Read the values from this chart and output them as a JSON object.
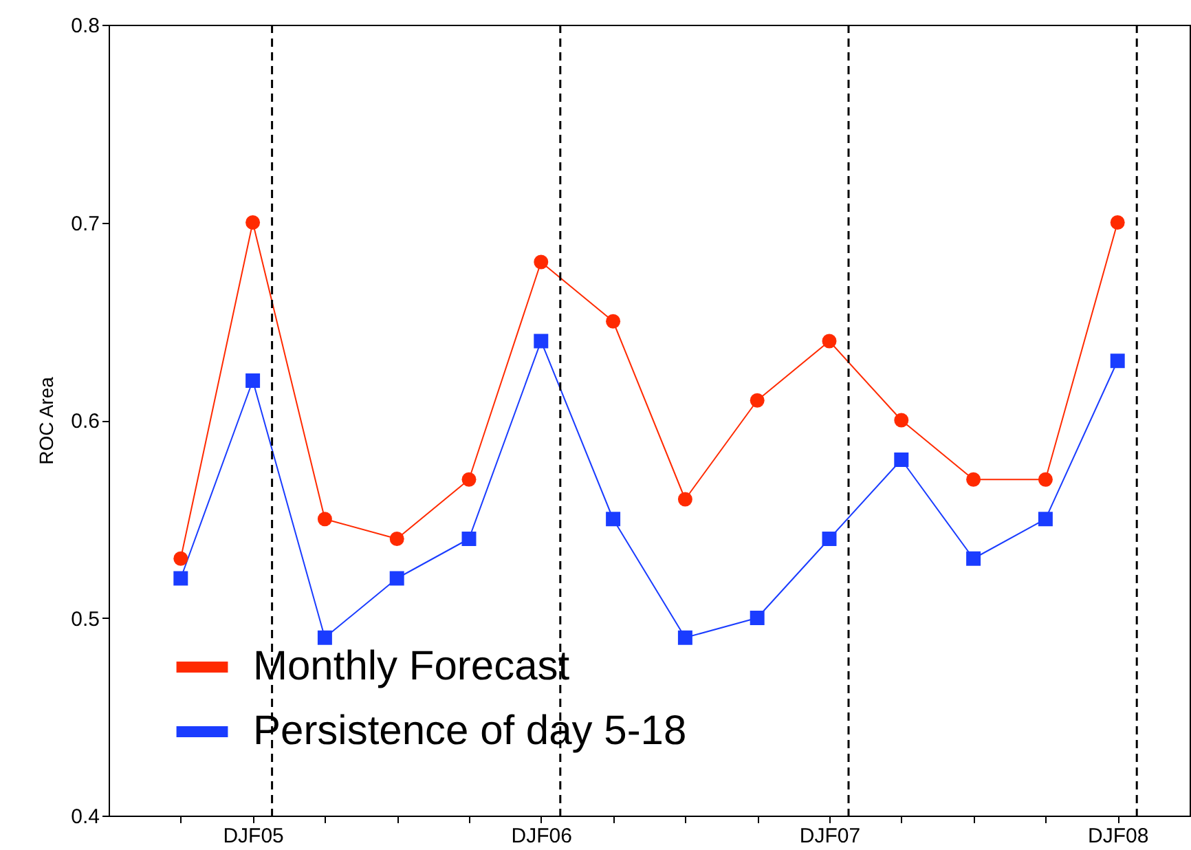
{
  "chart_data": {
    "type": "line",
    "ylabel": "ROC Area",
    "categories": [
      null,
      "DJF05",
      null,
      null,
      null,
      "DJF06",
      null,
      null,
      null,
      "DJF07",
      null,
      null,
      null,
      "DJF08"
    ],
    "ylim": [
      0.4,
      0.8
    ],
    "yticks": [
      0.4,
      0.5,
      0.6,
      0.7,
      0.8
    ],
    "series": [
      {
        "name": "Monthly Forecast",
        "color": "#ff2a00",
        "marker": "circle",
        "values": [
          0.53,
          0.7,
          0.55,
          0.54,
          0.57,
          0.68,
          0.65,
          0.56,
          0.61,
          0.64,
          0.6,
          0.57,
          0.57,
          0.7
        ]
      },
      {
        "name": "Persistence of day 5-18",
        "color": "#1a3cff",
        "marker": "square",
        "values": [
          0.52,
          0.62,
          0.49,
          0.52,
          0.54,
          0.64,
          0.55,
          0.49,
          0.5,
          0.54,
          0.58,
          0.53,
          0.55,
          0.63
        ]
      }
    ],
    "ref_lines": [
      {
        "axis": "x",
        "value": "DJF05",
        "color": "#000000",
        "line_style": "dashed"
      },
      {
        "axis": "x",
        "value": "DJF06",
        "color": "#000000",
        "line_style": "dashed"
      },
      {
        "axis": "x",
        "value": "DJF07",
        "color": "#000000",
        "line_style": "dashed"
      },
      {
        "axis": "x",
        "value": "DJF08",
        "color": "#000000",
        "line_style": "dashed"
      }
    ],
    "legend": "bottom left",
    "grid": false,
    "line_style": "solid"
  }
}
